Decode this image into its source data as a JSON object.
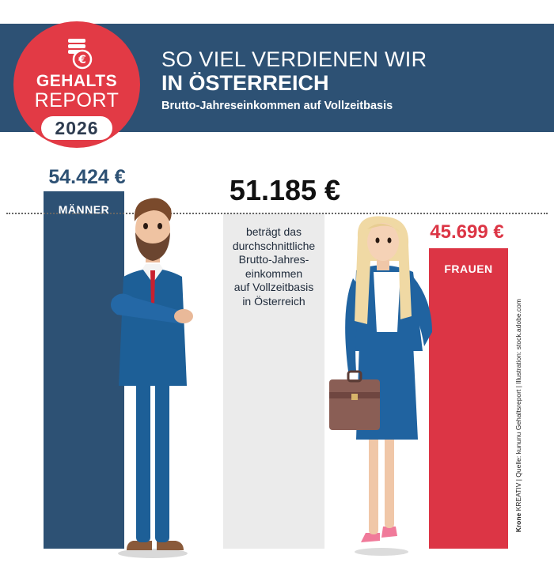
{
  "badge": {
    "line1": "GEHALTS",
    "line2": "REPORT",
    "year": "2026",
    "coin_icon": "euro-coin-stack-icon"
  },
  "header": {
    "title_line1": "SO VIEL VERDIENEN WIR",
    "title_line2": "IN ÖSTERREICH",
    "subtitle": "Brutto-Jahreseinkommen auf Vollzeitbasis"
  },
  "average": {
    "value_label": "51.185 €",
    "description_lines": [
      "beträgt das",
      "durchschnittliche",
      "Brutto-Jahres-",
      "einkommen",
      "auf Vollzeitbasis",
      "in Österreich"
    ]
  },
  "credit": {
    "brand": "Krone",
    "text": " KREATIV | Quelle: kununu Gehaltsreport | Illustration: stock.adobe.com"
  },
  "colors": {
    "header_band": "#2d5174",
    "badge_red": "#e23a45",
    "men_bar": "#2d5174",
    "women_bar": "#dc3545",
    "average_bar": "#ebebeb"
  },
  "chart_data": {
    "type": "bar",
    "categories": [
      "MÄNNER",
      "Durchschnitt",
      "FRAUEN"
    ],
    "values": [
      54424,
      51185,
      45699
    ],
    "value_labels": [
      "54.424 €",
      "51.185 €",
      "45.699 €"
    ],
    "title": "SO VIEL VERDIENEN WIR IN ÖSTERREICH",
    "subtitle": "Brutto-Jahreseinkommen auf Vollzeitbasis",
    "xlabel": "",
    "ylabel": "",
    "ylim": [
      0,
      54424
    ],
    "grid": false,
    "legend": "none"
  }
}
